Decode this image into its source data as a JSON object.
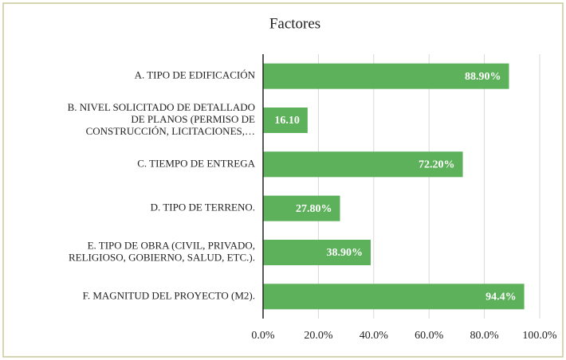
{
  "chart_data": {
    "type": "bar",
    "orientation": "horizontal",
    "title": "Factores",
    "categories": [
      "A. TIPO DE EDIFICACIÓN",
      "B. NIVEL SOLICITADO DE DETALLADO\nDE PLANOS (PERMISO DE\nCONSTRUCCIÓN, LICITACIONES,…",
      "C. TIEMPO DE ENTREGA",
      "D. TIPO DE TERRENO.",
      "E. TIPO DE OBRA (CIVIL, PRIVADO,\nRELIGIOSO, GOBIERNO, SALUD, ETC.).",
      "F.  MAGNITUD DEL PROYECTO (M2)."
    ],
    "values": [
      88.9,
      16.1,
      72.2,
      27.8,
      38.9,
      94.4
    ],
    "value_labels": [
      "88.90%",
      "16.10",
      "72.20%",
      "27.80%",
      "38.90%",
      "94.4%"
    ],
    "color": "#5cb15a",
    "xlim": [
      0,
      100
    ],
    "xticks": [
      {
        "value": 0,
        "label": "0.0%"
      },
      {
        "value": 20,
        "label": "20.0%"
      },
      {
        "value": 40,
        "label": "40.0%"
      },
      {
        "value": 60,
        "label": "60.0%"
      },
      {
        "value": 80,
        "label": "80.0%"
      },
      {
        "value": 100,
        "label": "100.0%"
      }
    ],
    "grid": true
  }
}
